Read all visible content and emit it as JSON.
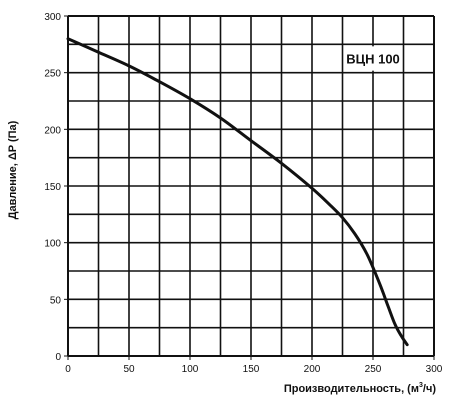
{
  "chart_data": {
    "type": "line",
    "badge": "ВЦН 100",
    "xlabel_main": "Производительность, (м",
    "xlabel_sup": "3",
    "xlabel_end": "/ч)",
    "ylabel": "Давление, ΔP (Па)",
    "xlim": [
      0,
      300
    ],
    "ylim": [
      0,
      300
    ],
    "x_ticks": [
      0,
      50,
      100,
      150,
      200,
      250,
      300
    ],
    "y_ticks": [
      0,
      50,
      100,
      150,
      200,
      250,
      300
    ],
    "x_grid_step": 25,
    "y_grid_step": 25,
    "grid": true,
    "series": [
      {
        "color": "#111111",
        "x": [
          0,
          25,
          50,
          75,
          100,
          125,
          150,
          175,
          200,
          215,
          225,
          235,
          245,
          255,
          262,
          268,
          273,
          278
        ],
        "y": [
          280,
          268,
          256,
          242,
          227,
          210,
          190,
          170,
          148,
          133,
          122,
          108,
          90,
          65,
          45,
          28,
          18,
          10
        ]
      }
    ]
  }
}
